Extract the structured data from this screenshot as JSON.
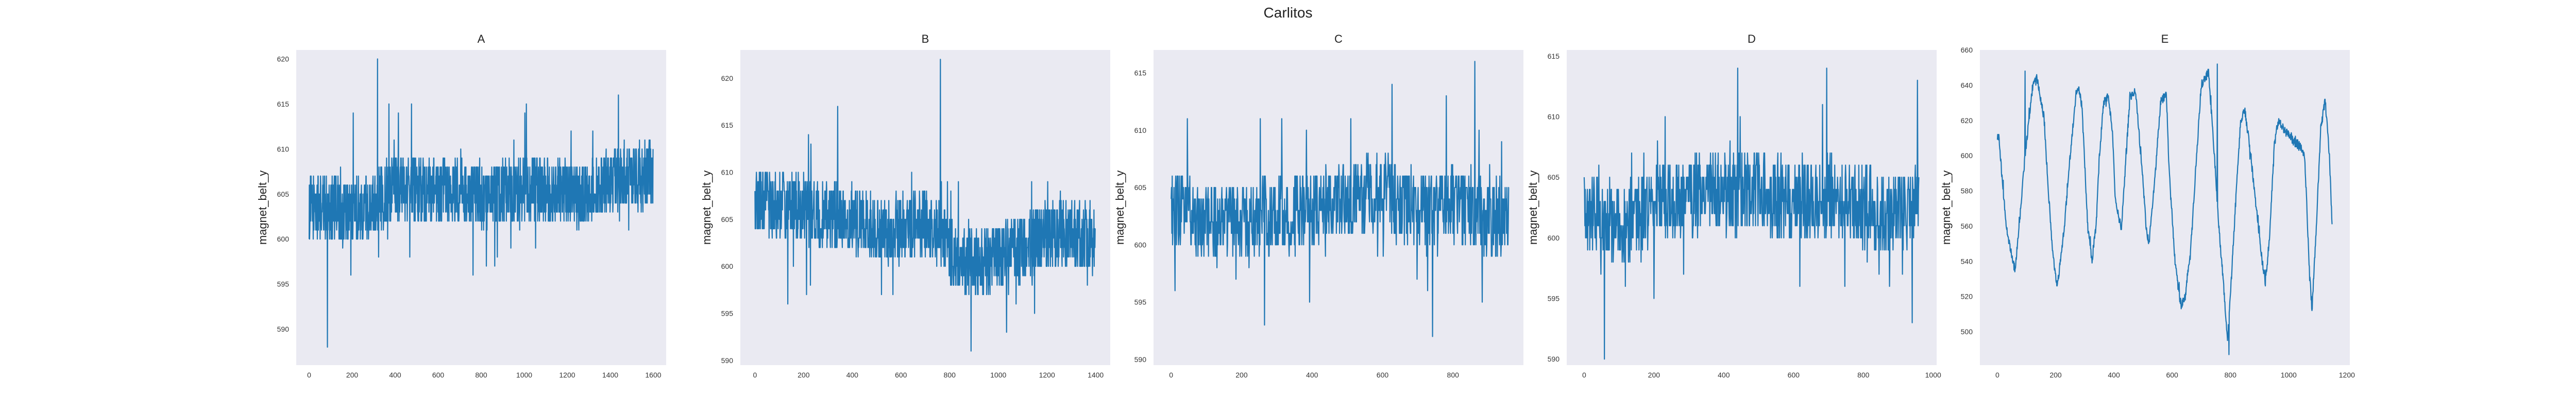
{
  "figure": {
    "suptitle": "Carlitos",
    "background": "#ffffff",
    "axes_background": "#eaeaf2",
    "line_color": "#1f77b4"
  },
  "chart_data": [
    {
      "type": "line",
      "title": "A",
      "xlabel": "",
      "ylabel": "magnet_belt_y",
      "xlim": [
        -60,
        1660
      ],
      "ylim": [
        586,
        621
      ],
      "xticks": [
        0,
        200,
        400,
        600,
        800,
        1000,
        1200,
        1400,
        1600
      ],
      "yticks": [
        590,
        595,
        600,
        605,
        610,
        615,
        620
      ],
      "n_points": 1600,
      "mean": 605,
      "noise": 3.0,
      "knots_x": [
        0,
        100,
        200,
        300,
        400,
        500,
        600,
        700,
        800,
        900,
        1000,
        1100,
        1200,
        1300,
        1400,
        1500,
        1600
      ],
      "knots_y": [
        603.5,
        603.5,
        603.0,
        604.0,
        606.0,
        605.5,
        605.0,
        605.5,
        604.5,
        605.0,
        605.5,
        605.5,
        605.0,
        605.0,
        606.5,
        607.0,
        607.0
      ],
      "marks": [
        {
          "x": 318,
          "y": 620
        },
        {
          "x": 85,
          "y": 588
        },
        {
          "x": 762,
          "y": 596
        },
        {
          "x": 1438,
          "y": 616
        },
        {
          "x": 1010,
          "y": 615
        }
      ]
    },
    {
      "type": "line",
      "title": "B",
      "xlabel": "",
      "ylabel": "magnet_belt_y",
      "xlim": [
        -60,
        1460
      ],
      "ylim": [
        589.5,
        623
      ],
      "xticks": [
        0,
        200,
        400,
        600,
        800,
        1000,
        1200,
        1400
      ],
      "yticks": [
        590,
        595,
        600,
        605,
        610,
        615,
        620
      ],
      "n_points": 1400,
      "mean": 605,
      "noise": 3.0,
      "knots_x": [
        0,
        100,
        200,
        300,
        400,
        500,
        600,
        700,
        800,
        900,
        1000,
        1100,
        1200,
        1300,
        1400
      ],
      "knots_y": [
        607.0,
        606.5,
        606.0,
        605.5,
        605.0,
        604.0,
        604.0,
        605.0,
        601.5,
        600.0,
        601.0,
        602.0,
        603.0,
        603.5,
        603.0
      ],
      "marks": [
        {
          "x": 762,
          "y": 622
        },
        {
          "x": 888,
          "y": 591
        },
        {
          "x": 340,
          "y": 617
        },
        {
          "x": 1255,
          "y": 608
        }
      ]
    },
    {
      "type": "line",
      "title": "C",
      "xlabel": "",
      "ylabel": "magnet_belt_y",
      "xlim": [
        -50,
        1000
      ],
      "ylim": [
        589.5,
        617
      ],
      "xticks": [
        0,
        200,
        400,
        600,
        800
      ],
      "yticks": [
        590,
        595,
        600,
        605,
        610,
        615
      ],
      "n_points": 960,
      "mean": 603,
      "noise": 2.8,
      "knots_x": [
        0,
        100,
        200,
        300,
        400,
        500,
        600,
        700,
        800,
        900,
        960
      ],
      "knots_y": [
        603.0,
        602.0,
        602.0,
        602.5,
        603.0,
        604.0,
        604.5,
        603.0,
        603.5,
        602.0,
        603.0
      ],
      "marks": [
        {
          "x": 862,
          "y": 616
        },
        {
          "x": 742,
          "y": 592
        },
        {
          "x": 627,
          "y": 614
        },
        {
          "x": 265,
          "y": 593
        }
      ]
    },
    {
      "type": "line",
      "title": "D",
      "xlabel": "",
      "ylabel": "magnet_belt_y",
      "xlim": [
        -50,
        1010
      ],
      "ylim": [
        589.5,
        615.5
      ],
      "xticks": [
        0,
        200,
        400,
        600,
        800,
        1000
      ],
      "yticks": [
        590,
        595,
        600,
        605,
        610,
        615
      ],
      "n_points": 960,
      "mean": 603,
      "noise": 2.8,
      "knots_x": [
        0,
        100,
        200,
        300,
        400,
        500,
        600,
        700,
        800,
        900,
        960
      ],
      "knots_y": [
        602.0,
        601.0,
        602.5,
        603.5,
        603.5,
        604.0,
        603.0,
        603.5,
        602.5,
        602.0,
        603.0
      ],
      "marks": [
        {
          "x": 58,
          "y": 590
        },
        {
          "x": 440,
          "y": 614
        },
        {
          "x": 695,
          "y": 614
        },
        {
          "x": 940,
          "y": 593
        }
      ]
    },
    {
      "type": "line",
      "title": "E",
      "xlabel": "",
      "ylabel": "magnet_belt_y",
      "xlim": [
        -60,
        1210
      ],
      "ylim": [
        481,
        660
      ],
      "xticks": [
        0,
        200,
        400,
        600,
        800,
        1000,
        1200
      ],
      "yticks": [
        500,
        520,
        540,
        560,
        580,
        600,
        620,
        640,
        660
      ],
      "n_points": 1150,
      "mean": 600,
      "noise": 2.0,
      "knots_x": [
        0,
        5,
        30,
        60,
        75,
        95,
        120,
        135,
        160,
        175,
        190,
        205,
        230,
        250,
        270,
        280,
        290,
        300,
        310,
        325,
        340,
        350,
        365,
        380,
        395,
        405,
        425,
        440,
        455,
        475,
        500,
        510,
        520,
        540,
        560,
        580,
        590,
        610,
        630,
        645,
        665,
        680,
        700,
        725,
        745,
        760,
        775,
        790,
        800,
        815,
        835,
        850,
        870,
        890,
        905,
        920,
        935,
        950,
        965,
        985,
        1000,
        1020,
        1040,
        1055,
        1070,
        1080,
        1095,
        1110,
        1125,
        1140,
        1150
      ],
      "knots_y": [
        610,
        610,
        560,
        535,
        560,
        600,
        638,
        645,
        622,
        580,
        545,
        525,
        560,
        600,
        636,
        638,
        628,
        595,
        560,
        540,
        563,
        600,
        630,
        635,
        615,
        575,
        558,
        595,
        634,
        636,
        585,
        560,
        550,
        585,
        630,
        636,
        590,
        540,
        515,
        520,
        550,
        590,
        640,
        648,
        600,
        560,
        530,
        495,
        520,
        565,
        620,
        626,
        600,
        568,
        545,
        528,
        555,
        605,
        620,
        615,
        612,
        608,
        605,
        600,
        540,
        512,
        560,
        615,
        632,
        600,
        555
      ],
      "marks": [
        {
          "x": 795,
          "y": 487
        },
        {
          "x": 755,
          "y": 652
        },
        {
          "x": 95,
          "y": 648
        }
      ]
    }
  ]
}
